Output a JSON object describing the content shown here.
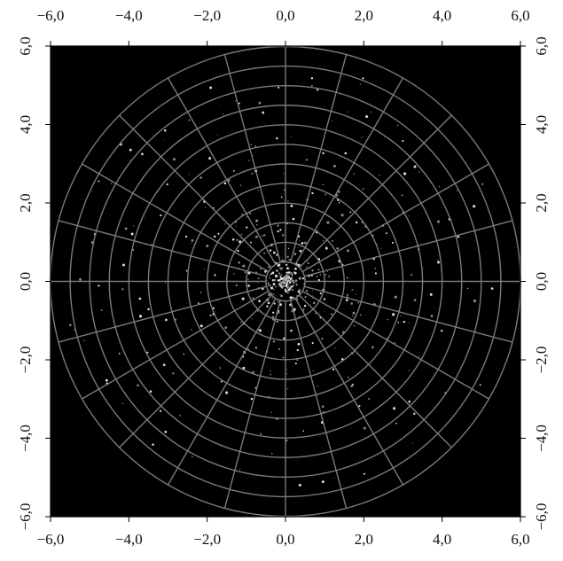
{
  "chart_data": {
    "type": "radar",
    "xlim": [
      -6,
      6
    ],
    "ylim": [
      -6,
      6
    ],
    "xticks": [
      {
        "value": -6,
        "label": "−6,0"
      },
      {
        "value": -4,
        "label": "−4,0"
      },
      {
        "value": -2,
        "label": "−2,0"
      },
      {
        "value": 0,
        "label": "0,0"
      },
      {
        "value": 2,
        "label": "2,0"
      },
      {
        "value": 4,
        "label": "4,0"
      },
      {
        "value": 6,
        "label": "6,0"
      }
    ],
    "yticks": [
      {
        "value": -6,
        "label": "−6,0"
      },
      {
        "value": -4,
        "label": "−4,0"
      },
      {
        "value": -2,
        "label": "−2,0"
      },
      {
        "value": 0,
        "label": "0,0"
      },
      {
        "value": 2,
        "label": "2,0"
      },
      {
        "value": 4,
        "label": "4,0"
      },
      {
        "value": 6,
        "label": "6,0"
      }
    ],
    "grid": true
  }
}
